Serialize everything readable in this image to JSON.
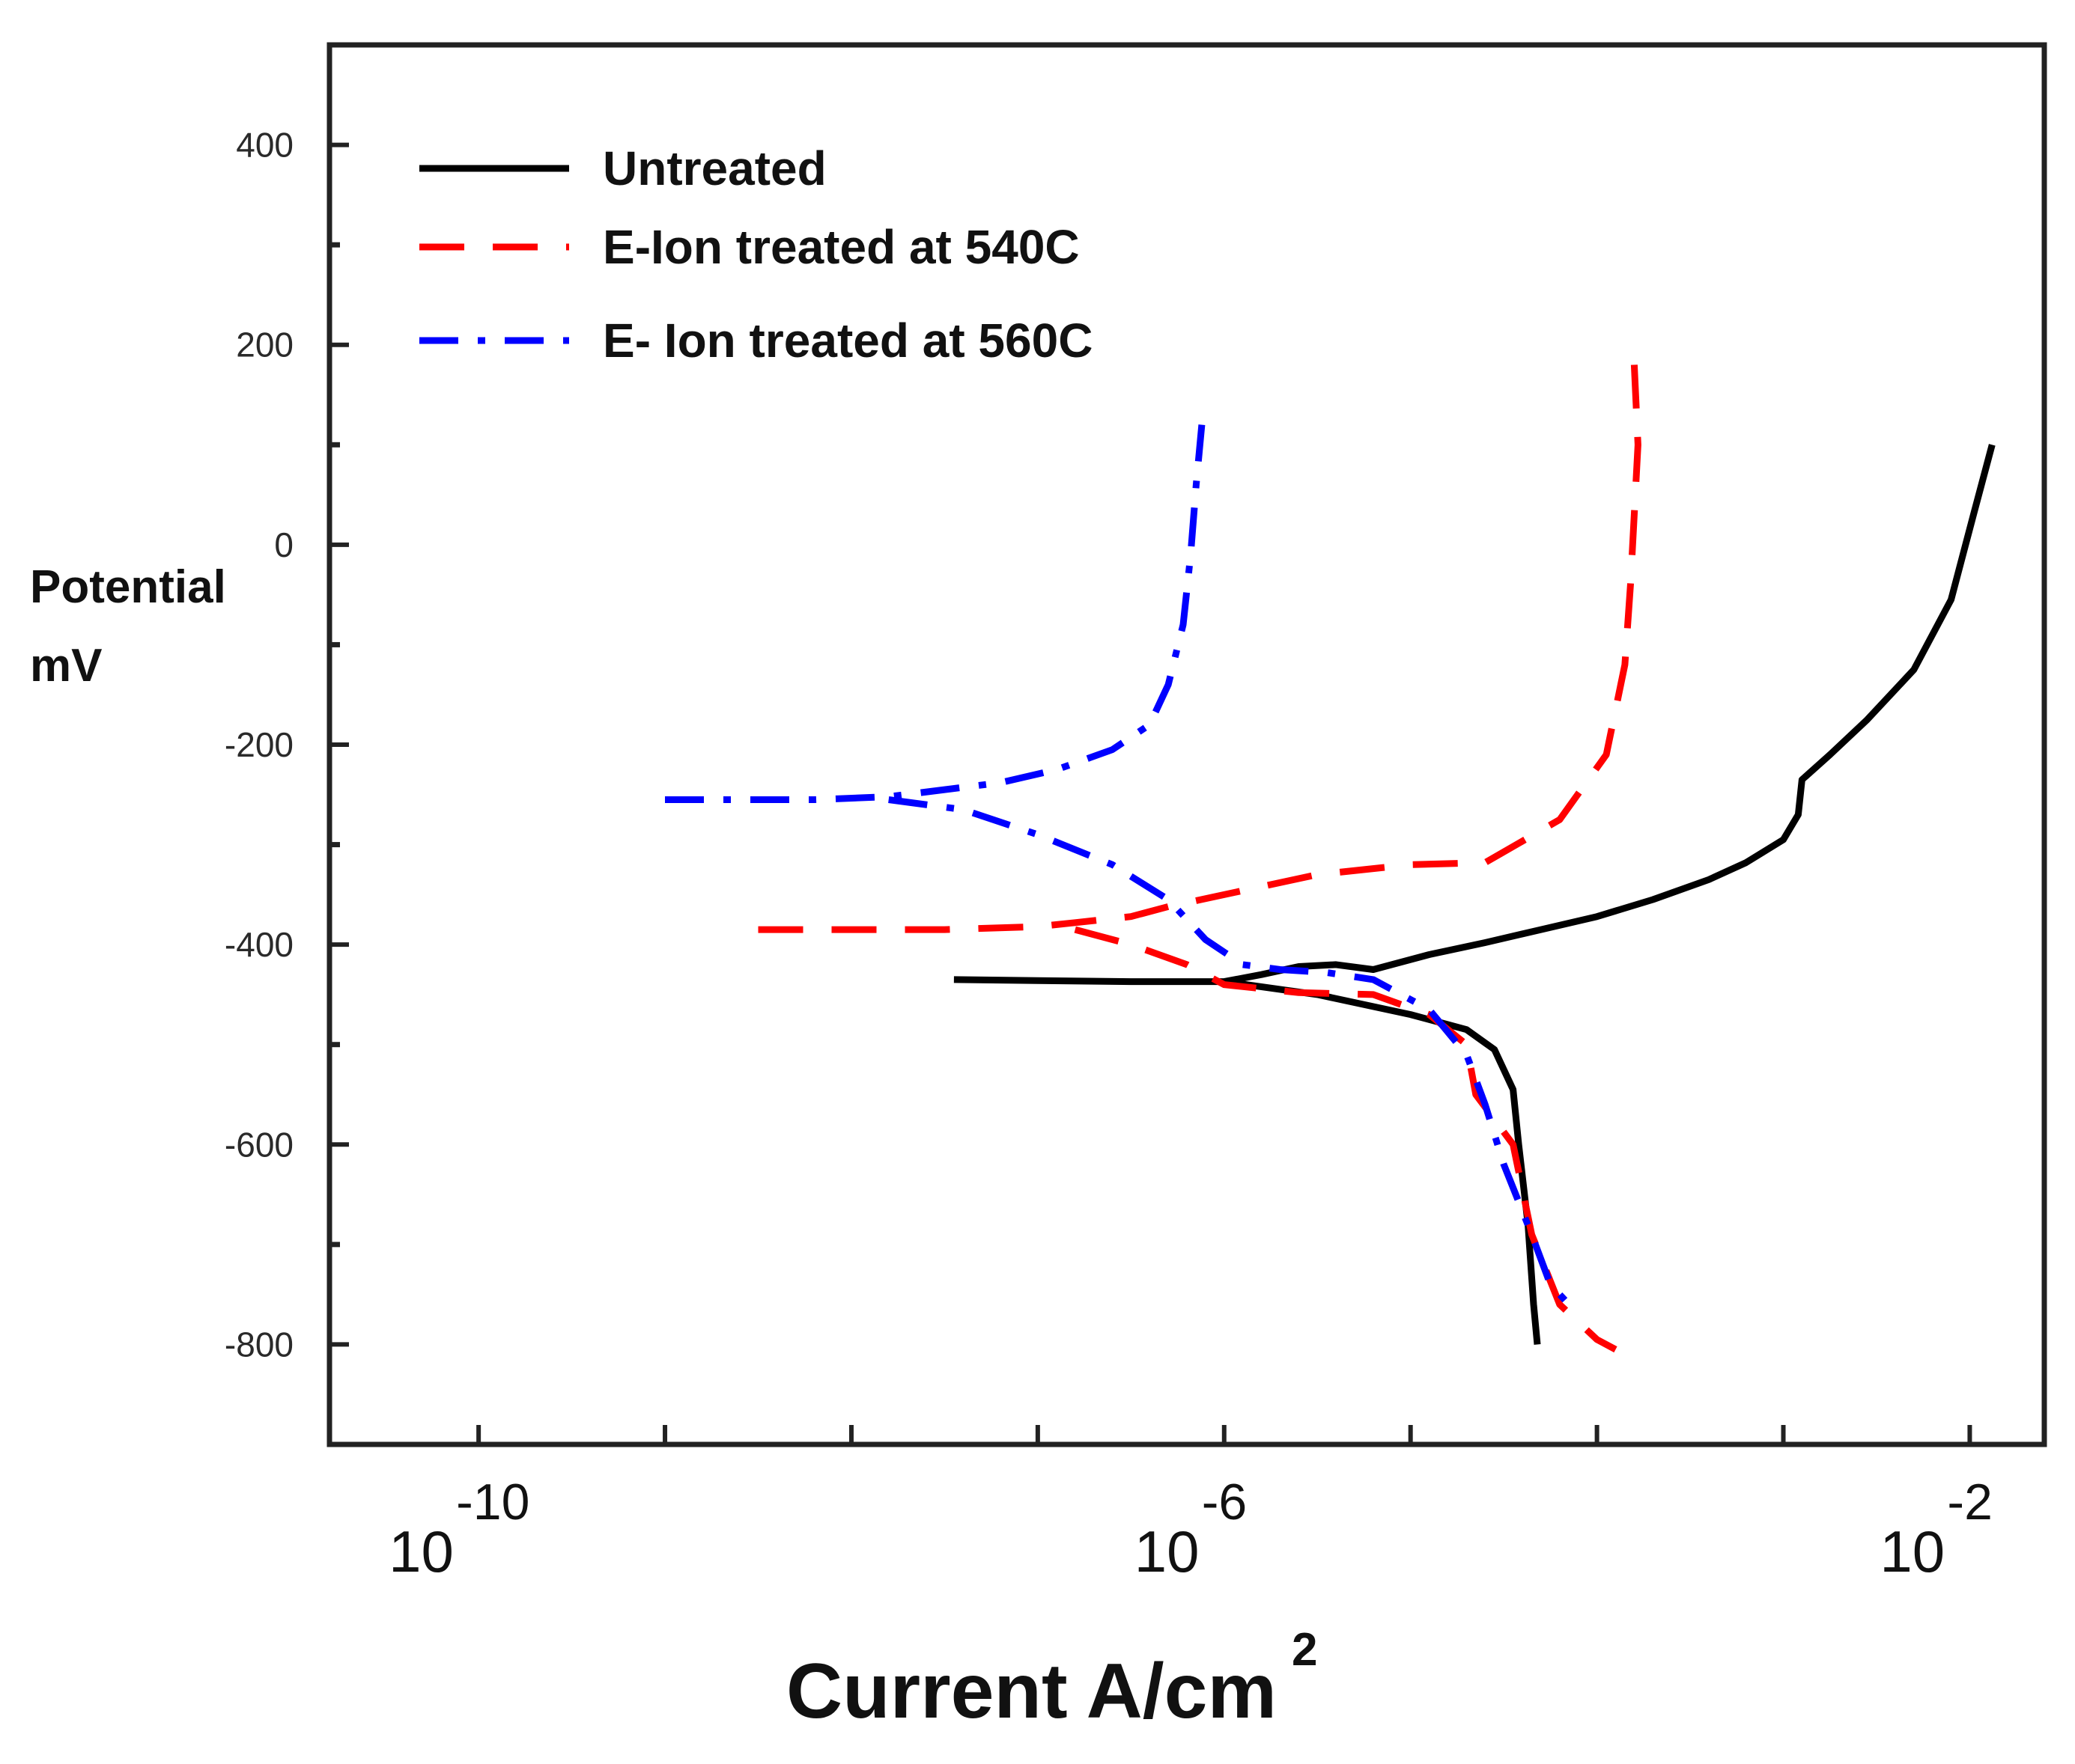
{
  "chart_data": {
    "type": "line",
    "title": "",
    "xlabel": "Current A/cm",
    "xlabel_superscript": "2",
    "ylabel_line1": "Potential",
    "ylabel_line2": "mV",
    "x_scale": "log",
    "xlim_log10": [
      -10.8,
      -1.6
    ],
    "ylim": [
      -900,
      500
    ],
    "y_ticks": [
      400,
      200,
      0,
      -200,
      -400,
      -600,
      -800
    ],
    "y_tick_labels": [
      "400",
      "200",
      "0",
      "-200",
      "-400",
      "-600",
      "-800"
    ],
    "x_decade_labels": [
      {
        "log": -10,
        "base": "10",
        "exp": "-10"
      },
      {
        "log": -6,
        "base": "10",
        "exp": "-6"
      },
      {
        "log": -2,
        "base": "10",
        "exp": "-2"
      }
    ],
    "x_minor_ticks_log10": [
      -10,
      -9,
      -8,
      -7,
      -6,
      -5,
      -4,
      -3,
      -2
    ],
    "grid": false,
    "legend_position": "top-left",
    "series": [
      {
        "name": "Untreated",
        "color": "#000000",
        "style": "solid",
        "points_log_i_mV": [
          [
            -7.45,
            -435
          ],
          [
            -7.0,
            -436
          ],
          [
            -6.5,
            -437
          ],
          [
            -6.0,
            -437
          ],
          [
            -5.8,
            -430
          ],
          [
            -5.6,
            -422
          ],
          [
            -5.4,
            -420
          ],
          [
            -5.2,
            -425
          ],
          [
            -4.9,
            -410
          ],
          [
            -4.6,
            -398
          ],
          [
            -4.3,
            -385
          ],
          [
            -4.0,
            -372
          ],
          [
            -3.7,
            -355
          ],
          [
            -3.4,
            -335
          ],
          [
            -3.2,
            -318
          ],
          [
            -3.0,
            -295
          ],
          [
            -2.92,
            -270
          ],
          [
            -2.9,
            -235
          ],
          [
            -2.75,
            -210
          ],
          [
            -2.55,
            -175
          ],
          [
            -2.3,
            -125
          ],
          [
            -2.1,
            -55
          ],
          [
            -1.98,
            30
          ],
          [
            -1.88,
            100
          ]
        ],
        "points_cathodic_log_i_mV": [
          [
            -6.0,
            -437
          ],
          [
            -5.5,
            -450
          ],
          [
            -5.0,
            -470
          ],
          [
            -4.7,
            -485
          ],
          [
            -4.55,
            -505
          ],
          [
            -4.45,
            -545
          ],
          [
            -4.42,
            -600
          ],
          [
            -4.37,
            -680
          ],
          [
            -4.34,
            -760
          ],
          [
            -4.32,
            -800
          ]
        ]
      },
      {
        "name": "E-Ion treated at 540C",
        "color": "#ff0000",
        "style": "dashed",
        "points_log_i_mV": [
          [
            -8.5,
            -385
          ],
          [
            -8.0,
            -385
          ],
          [
            -7.5,
            -385
          ],
          [
            -7.0,
            -382
          ],
          [
            -6.8,
            -378
          ],
          [
            -6.5,
            -372
          ],
          [
            -6.3,
            -362
          ],
          [
            -6.0,
            -350
          ],
          [
            -5.5,
            -330
          ],
          [
            -5.0,
            -320
          ],
          [
            -4.6,
            -318
          ],
          [
            -4.2,
            -275
          ],
          [
            -3.95,
            -210
          ],
          [
            -3.85,
            -120
          ],
          [
            -3.82,
            -40
          ],
          [
            -3.78,
            100
          ],
          [
            -3.8,
            180
          ]
        ],
        "points_cathodic_log_i_mV": [
          [
            -6.8,
            -385
          ],
          [
            -6.5,
            -400
          ],
          [
            -6.2,
            -420
          ],
          [
            -6.0,
            -440
          ],
          [
            -5.6,
            -448
          ],
          [
            -5.2,
            -450
          ],
          [
            -4.9,
            -470
          ],
          [
            -4.7,
            -500
          ],
          [
            -4.65,
            -550
          ],
          [
            -4.45,
            -600
          ],
          [
            -4.35,
            -690
          ],
          [
            -4.2,
            -760
          ],
          [
            -4.0,
            -795
          ],
          [
            -3.9,
            -805
          ]
        ]
      },
      {
        "name": "E- Ion treated at 560C",
        "color": "#0000ff",
        "style": "dashdot",
        "points_log_i_mV": [
          [
            -9.0,
            -255
          ],
          [
            -8.6,
            -255
          ],
          [
            -8.2,
            -255
          ],
          [
            -7.8,
            -252
          ],
          [
            -7.5,
            -245
          ],
          [
            -7.2,
            -238
          ],
          [
            -6.9,
            -225
          ],
          [
            -6.6,
            -205
          ],
          [
            -6.4,
            -180
          ],
          [
            -6.3,
            -140
          ],
          [
            -6.22,
            -80
          ],
          [
            -6.18,
            -10
          ],
          [
            -6.15,
            60
          ],
          [
            -6.12,
            120
          ]
        ],
        "points_cathodic_log_i_mV": [
          [
            -7.8,
            -255
          ],
          [
            -7.4,
            -265
          ],
          [
            -7.0,
            -290
          ],
          [
            -6.6,
            -320
          ],
          [
            -6.3,
            -355
          ],
          [
            -6.1,
            -395
          ],
          [
            -5.9,
            -420
          ],
          [
            -5.7,
            -425
          ],
          [
            -5.45,
            -428
          ],
          [
            -5.2,
            -435
          ],
          [
            -4.9,
            -465
          ],
          [
            -4.7,
            -510
          ],
          [
            -4.6,
            -560
          ],
          [
            -4.5,
            -620
          ],
          [
            -4.35,
            -690
          ],
          [
            -4.25,
            -740
          ],
          [
            -4.15,
            -760
          ]
        ]
      }
    ]
  }
}
